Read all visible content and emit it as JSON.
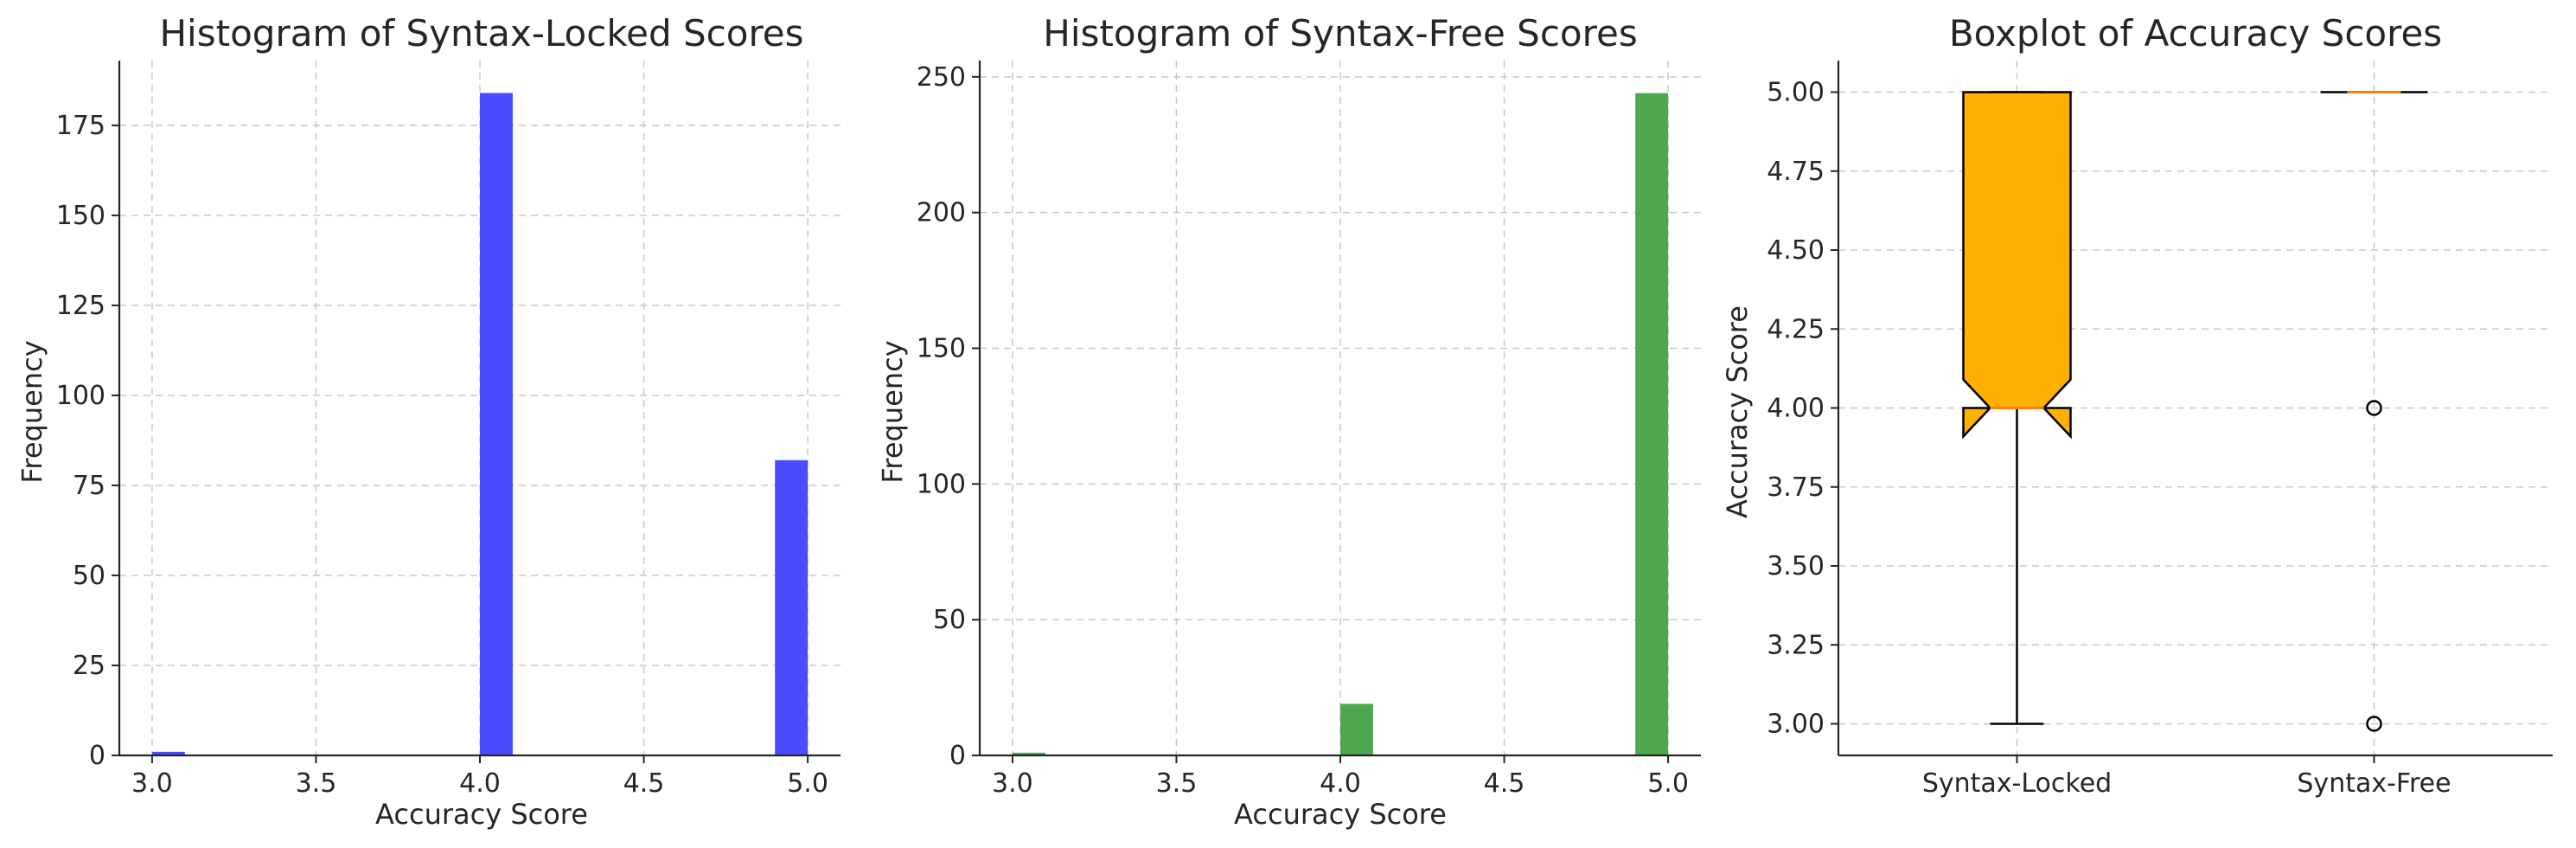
{
  "chart_data": [
    {
      "type": "bar",
      "title": "Histogram of Syntax-Locked Scores",
      "xlabel": "Accuracy Score",
      "ylabel": "Frequency",
      "xlim": [
        2.9,
        5.1
      ],
      "ylim": [
        0,
        193
      ],
      "xticks": [
        "3.0",
        "3.5",
        "4.0",
        "4.5",
        "5.0"
      ],
      "yticks": [
        "0",
        "25",
        "50",
        "75",
        "100",
        "125",
        "150",
        "175"
      ],
      "grid": true,
      "color": "#4b4bff",
      "bins": [
        {
          "x_start": 3.0,
          "x_end": 3.1,
          "value": 1
        },
        {
          "x_start": 4.0,
          "x_end": 4.1,
          "value": 184
        },
        {
          "x_start": 4.9,
          "x_end": 5.0,
          "value": 82
        }
      ]
    },
    {
      "type": "bar",
      "title": "Histogram of Syntax-Free Scores",
      "xlabel": "Accuracy Score",
      "ylabel": "Frequency",
      "xlim": [
        2.9,
        5.1
      ],
      "ylim": [
        0,
        256
      ],
      "xticks": [
        "3.0",
        "3.5",
        "4.0",
        "4.5",
        "5.0"
      ],
      "yticks": [
        "0",
        "50",
        "100",
        "150",
        "200",
        "250"
      ],
      "grid": true,
      "color": "#4ea64e",
      "bins": [
        {
          "x_start": 3.0,
          "x_end": 3.1,
          "value": 1
        },
        {
          "x_start": 4.0,
          "x_end": 4.1,
          "value": 19
        },
        {
          "x_start": 4.9,
          "x_end": 5.0,
          "value": 244
        }
      ]
    },
    {
      "type": "box",
      "title": "Boxplot of Accuracy Scores",
      "xlabel": "",
      "ylabel": "Accuracy Score",
      "ylim": [
        2.9,
        5.1
      ],
      "yticks": [
        "3.00",
        "3.25",
        "3.50",
        "3.75",
        "4.00",
        "4.25",
        "4.50",
        "4.75",
        "5.00"
      ],
      "grid": true,
      "notched": true,
      "box_color": "#ffb000",
      "median_color": "#ff7f0e",
      "boxes": [
        {
          "name": "Syntax-Locked",
          "whislo": 3.0,
          "q1": 4.0,
          "med": 4.0,
          "q3": 5.0,
          "whishi": 5.0,
          "notch_lo": 3.91,
          "notch_hi": 4.09,
          "fliers": []
        },
        {
          "name": "Syntax-Free",
          "whislo": 5.0,
          "q1": 5.0,
          "med": 5.0,
          "q3": 5.0,
          "whishi": 5.0,
          "notch_lo": 5.0,
          "notch_hi": 5.0,
          "fliers": [
            4.0,
            3.0
          ]
        }
      ]
    }
  ]
}
